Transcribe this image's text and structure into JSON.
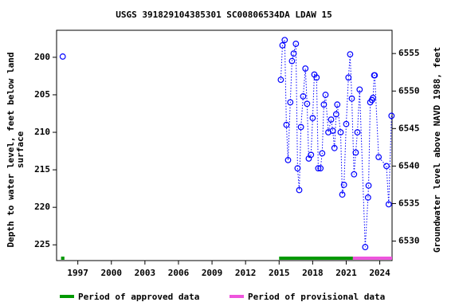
{
  "chart_data": {
    "type": "scatter",
    "title": "USGS 391829104385301 SC00806534DA LDAW 15",
    "ylabel": [
      "Depth to water level, feet below land",
      "surface"
    ],
    "y2label": "Groundwater level above NAVD 1988, feet",
    "xlim": [
      1995.1,
      2025.1
    ],
    "xticks": [
      1997,
      2000,
      2003,
      2006,
      2009,
      2012,
      2015,
      2018,
      2021,
      2024
    ],
    "ylim": [
      196.4,
      227.1
    ],
    "yticks": [
      200,
      205,
      210,
      215,
      220,
      225
    ],
    "y_inverted": true,
    "y2lim": [
      6558.1,
      6527.4
    ],
    "y2ticks": [
      6530,
      6535,
      6540,
      6545,
      6550,
      6555
    ],
    "series": [
      {
        "color": "#0000ff",
        "x": [
          1995.65,
          null,
          2015.15,
          2015.3,
          2015.5,
          2015.65,
          2015.8,
          2016.0,
          2016.15,
          2016.3,
          2016.5,
          2016.65,
          2016.8,
          2016.95,
          2017.15,
          2017.35,
          2017.5,
          2017.65,
          2017.85,
          2018.0,
          2018.15,
          2018.35,
          2018.5,
          2018.7,
          2018.85,
          2019.0,
          2019.15,
          2019.4,
          2019.65,
          2019.8,
          2019.95,
          2020.1,
          2020.2,
          2020.5,
          2020.65,
          2020.8,
          2021.0,
          2021.2,
          2021.35,
          2021.5,
          2021.7,
          2021.85,
          2022.0,
          2022.2,
          2022.7,
          2022.95,
          2023.0,
          2023.15,
          2023.3,
          2023.4,
          2023.5,
          2023.55,
          2023.9,
          2024.6,
          2024.8,
          2025.05
        ],
        "values": [
          199.9,
          null,
          203.0,
          198.4,
          197.7,
          209.0,
          213.7,
          206.0,
          200.5,
          199.5,
          198.2,
          214.8,
          217.7,
          209.3,
          205.2,
          201.5,
          206.2,
          213.5,
          213.0,
          208.1,
          202.3,
          202.7,
          214.8,
          214.8,
          212.8,
          206.3,
          205.0,
          210.0,
          208.3,
          209.8,
          212.1,
          207.6,
          206.3,
          210.0,
          218.3,
          217.0,
          208.9,
          202.7,
          199.6,
          205.5,
          215.6,
          212.7,
          210.0,
          204.3,
          225.3,
          218.7,
          217.1,
          206.0,
          205.7,
          205.4,
          202.4,
          202.4,
          213.3,
          214.5,
          219.6,
          207.8
        ]
      }
    ],
    "periods": [
      {
        "name": "Period of approved data",
        "color": "#009900",
        "ranges": [
          [
            1995.5,
            1995.8
          ],
          [
            2015.0,
            2021.6
          ]
        ]
      },
      {
        "name": "Period of provisional data",
        "color": "#ee55dd",
        "ranges": [
          [
            2021.6,
            2025.1
          ]
        ]
      }
    ]
  }
}
